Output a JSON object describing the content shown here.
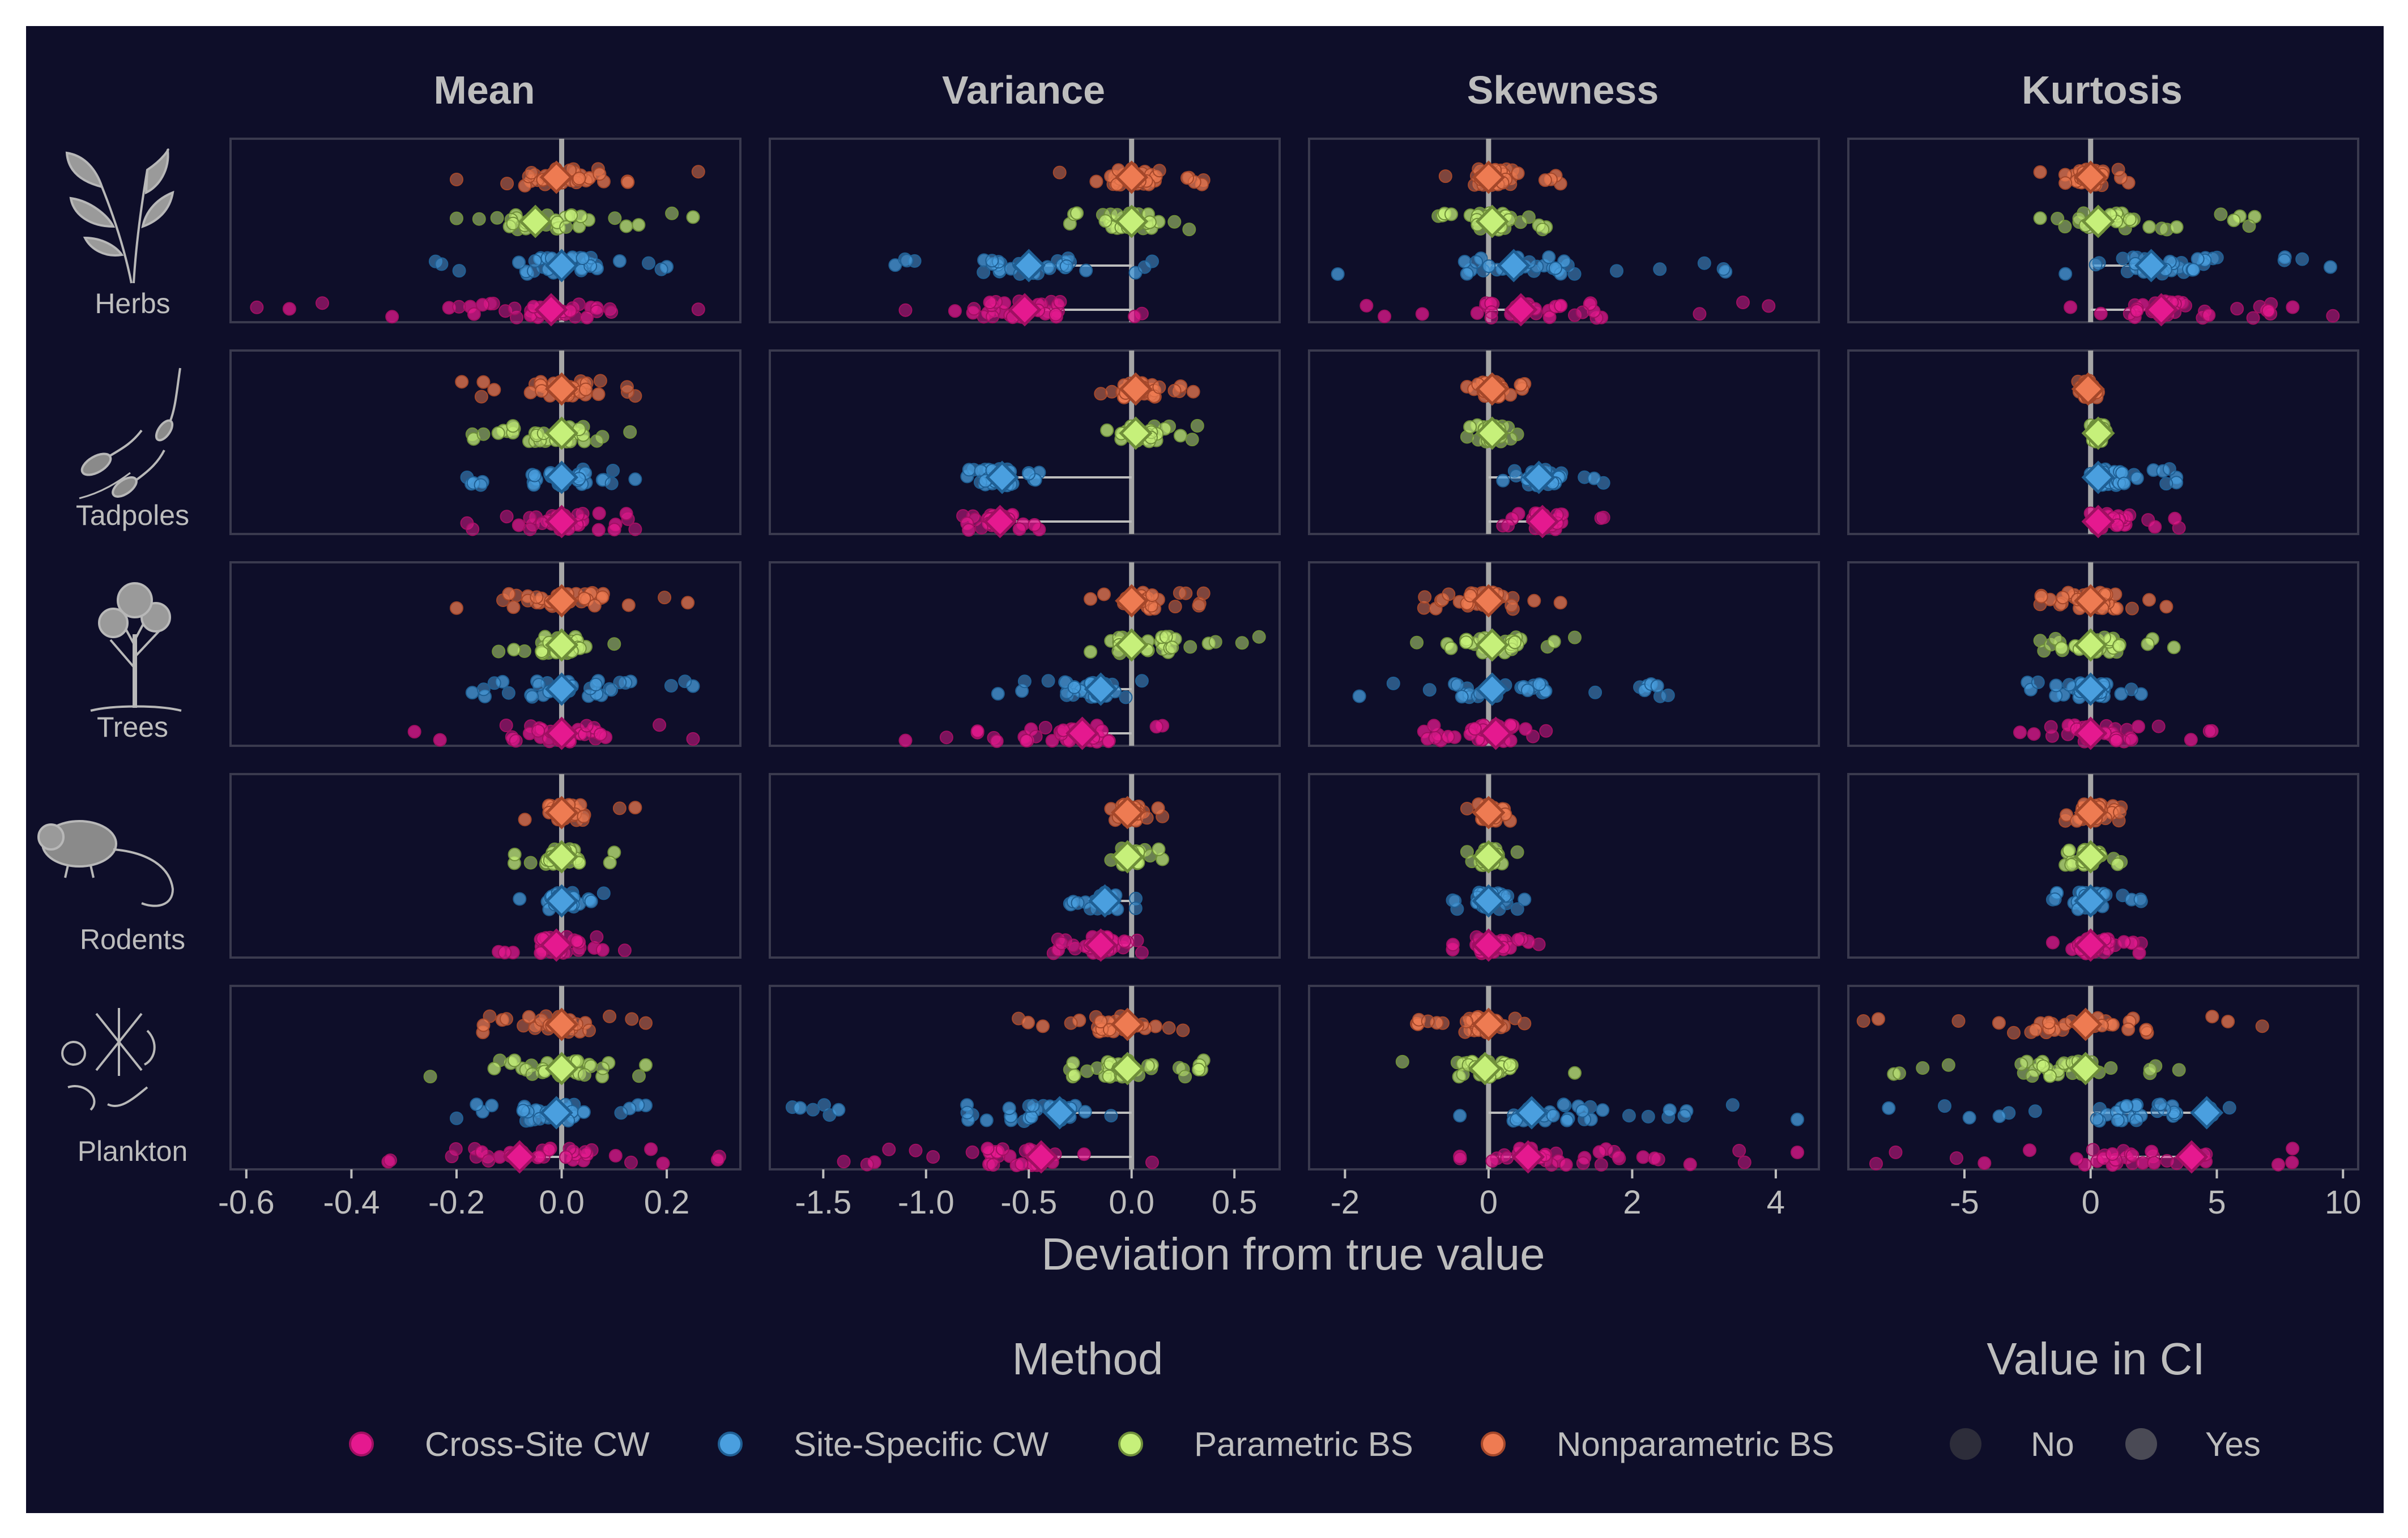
{
  "chart_data": {
    "type": "scatter",
    "xlabel": "Deviation from true value",
    "columns": [
      {
        "title": "Mean",
        "xlim": [
          -0.63,
          0.34
        ],
        "ticks": [
          -0.6,
          -0.4,
          -0.2,
          0.0,
          0.2
        ],
        "tick_labels": [
          "-0.6",
          "-0.4",
          "-0.2",
          "0.0",
          "0.2"
        ]
      },
      {
        "title": "Variance",
        "xlim": [
          -1.76,
          0.72
        ],
        "ticks": [
          -1.5,
          -1.0,
          -0.5,
          0.0,
          0.5
        ],
        "tick_labels": [
          "-1.5",
          "-1.0",
          "-0.5",
          "0.0",
          "0.5"
        ]
      },
      {
        "title": "Skewness",
        "xlim": [
          -2.5,
          4.6
        ],
        "ticks": [
          -2,
          0,
          2,
          4
        ],
        "tick_labels": [
          "-2",
          "0",
          "2",
          "4"
        ]
      },
      {
        "title": "Kurtosis",
        "xlim": [
          -9.6,
          10.6
        ],
        "ticks": [
          -5,
          0,
          5,
          10
        ],
        "tick_labels": [
          "-5",
          "0",
          "5",
          "10"
        ]
      }
    ],
    "rows": [
      "Herbs",
      "Tadpoles",
      "Trees",
      "Rodents",
      "Plankton"
    ],
    "methods": [
      "Cross-Site CW",
      "Site-Specific CW",
      "Parametric BS",
      "Nonparametric BS"
    ],
    "method_colors": {
      "Cross-Site CW": "#e5198f",
      "Site-Specific CW": "#4a9fdf",
      "Parametric BS": "#c6f07a",
      "Nonparametric BS": "#ee7b52"
    },
    "mean_deviation": {
      "Herbs": {
        "Mean": {
          "Nonparametric BS": -0.01,
          "Parametric BS": -0.05,
          "Site-Specific CW": 0.0,
          "Cross-Site CW": -0.02
        },
        "Variance": {
          "Nonparametric BS": 0.0,
          "Parametric BS": 0.0,
          "Site-Specific CW": -0.5,
          "Cross-Site CW": -0.52
        },
        "Skewness": {
          "Nonparametric BS": 0.0,
          "Parametric BS": 0.05,
          "Site-Specific CW": 0.35,
          "Cross-Site CW": 0.45
        },
        "Kurtosis": {
          "Nonparametric BS": 0.0,
          "Parametric BS": 0.3,
          "Site-Specific CW": 2.4,
          "Cross-Site CW": 2.8
        }
      },
      "Tadpoles": {
        "Mean": {
          "Nonparametric BS": 0.0,
          "Parametric BS": 0.0,
          "Site-Specific CW": 0.0,
          "Cross-Site CW": 0.0
        },
        "Variance": {
          "Nonparametric BS": 0.02,
          "Parametric BS": 0.02,
          "Site-Specific CW": -0.63,
          "Cross-Site CW": -0.64
        },
        "Skewness": {
          "Nonparametric BS": 0.05,
          "Parametric BS": 0.05,
          "Site-Specific CW": 0.7,
          "Cross-Site CW": 0.75
        },
        "Kurtosis": {
          "Nonparametric BS": -0.1,
          "Parametric BS": 0.3,
          "Site-Specific CW": 0.3,
          "Cross-Site CW": 0.3
        }
      },
      "Trees": {
        "Mean": {
          "Nonparametric BS": 0.0,
          "Parametric BS": 0.0,
          "Site-Specific CW": 0.0,
          "Cross-Site CW": 0.0
        },
        "Variance": {
          "Nonparametric BS": 0.0,
          "Parametric BS": 0.0,
          "Site-Specific CW": -0.15,
          "Cross-Site CW": -0.24
        },
        "Skewness": {
          "Nonparametric BS": 0.0,
          "Parametric BS": 0.05,
          "Site-Specific CW": 0.05,
          "Cross-Site CW": 0.1
        },
        "Kurtosis": {
          "Nonparametric BS": 0.0,
          "Parametric BS": 0.0,
          "Site-Specific CW": 0.0,
          "Cross-Site CW": 0.0
        }
      },
      "Rodents": {
        "Mean": {
          "Nonparametric BS": 0.0,
          "Parametric BS": 0.0,
          "Site-Specific CW": 0.0,
          "Cross-Site CW": -0.01
        },
        "Variance": {
          "Nonparametric BS": -0.02,
          "Parametric BS": -0.02,
          "Site-Specific CW": -0.13,
          "Cross-Site CW": -0.15
        },
        "Skewness": {
          "Nonparametric BS": 0.0,
          "Parametric BS": 0.0,
          "Site-Specific CW": 0.0,
          "Cross-Site CW": 0.0
        },
        "Kurtosis": {
          "Nonparametric BS": 0.0,
          "Parametric BS": 0.0,
          "Site-Specific CW": 0.0,
          "Cross-Site CW": 0.0
        }
      },
      "Plankton": {
        "Mean": {
          "Nonparametric BS": 0.0,
          "Parametric BS": 0.0,
          "Site-Specific CW": -0.01,
          "Cross-Site CW": -0.08
        },
        "Variance": {
          "Nonparametric BS": -0.02,
          "Parametric BS": -0.02,
          "Site-Specific CW": -0.35,
          "Cross-Site CW": -0.44
        },
        "Skewness": {
          "Nonparametric BS": 0.0,
          "Parametric BS": -0.05,
          "Site-Specific CW": 0.6,
          "Cross-Site CW": 0.55
        },
        "Kurtosis": {
          "Nonparametric BS": -0.2,
          "Parametric BS": -0.2,
          "Site-Specific CW": 4.6,
          "Cross-Site CW": 4.0
        }
      }
    },
    "spread": {
      "Herbs": {
        "Mean": {
          "Nonparametric BS": [
            -0.2,
            0.26
          ],
          "Parametric BS": [
            -0.2,
            0.25
          ],
          "Site-Specific CW": [
            -0.24,
            0.2
          ],
          "Cross-Site CW": [
            -0.58,
            0.26
          ]
        },
        "Variance": {
          "Nonparametric BS": [
            -0.35,
            0.35
          ],
          "Parametric BS": [
            -0.3,
            0.28
          ],
          "Site-Specific CW": [
            -1.15,
            0.1
          ],
          "Cross-Site CW": [
            -1.1,
            0.05
          ]
        },
        "Skewness": {
          "Nonparametric BS": [
            -0.6,
            1.0
          ],
          "Parametric BS": [
            -0.7,
            0.8
          ],
          "Site-Specific CW": [
            -2.1,
            3.3
          ],
          "Cross-Site CW": [
            -1.7,
            3.9
          ]
        },
        "Kurtosis": {
          "Nonparametric BS": [
            -2.0,
            1.5
          ],
          "Parametric BS": [
            -2.0,
            6.5
          ],
          "Site-Specific CW": [
            -1.0,
            9.5
          ],
          "Cross-Site CW": [
            -0.8,
            9.6
          ]
        }
      },
      "Tadpoles": {
        "Mean": {
          "Nonparametric BS": [
            -0.19,
            0.14
          ],
          "Parametric BS": [
            -0.17,
            0.13
          ],
          "Site-Specific CW": [
            -0.18,
            0.14
          ],
          "Cross-Site CW": [
            -0.18,
            0.14
          ]
        },
        "Variance": {
          "Nonparametric BS": [
            -0.15,
            0.3
          ],
          "Parametric BS": [
            -0.12,
            0.32
          ],
          "Site-Specific CW": [
            -0.8,
            -0.45
          ],
          "Cross-Site CW": [
            -0.82,
            -0.45
          ]
        },
        "Skewness": {
          "Nonparametric BS": [
            -0.3,
            0.5
          ],
          "Parametric BS": [
            -0.3,
            0.4
          ],
          "Site-Specific CW": [
            0.2,
            1.6
          ],
          "Cross-Site CW": [
            0.2,
            1.6
          ]
        },
        "Kurtosis": {
          "Nonparametric BS": [
            -0.5,
            0.3
          ],
          "Parametric BS": [
            0.0,
            0.6
          ],
          "Site-Specific CW": [
            0.0,
            3.4
          ],
          "Cross-Site CW": [
            0.0,
            3.5
          ]
        }
      },
      "Trees": {
        "Mean": {
          "Nonparametric BS": [
            -0.2,
            0.24
          ],
          "Parametric BS": [
            -0.12,
            0.1
          ],
          "Site-Specific CW": [
            -0.17,
            0.25
          ],
          "Cross-Site CW": [
            -0.28,
            0.25
          ]
        },
        "Variance": {
          "Nonparametric BS": [
            -0.2,
            0.35
          ],
          "Parametric BS": [
            -0.2,
            0.62
          ],
          "Site-Specific CW": [
            -0.65,
            0.05
          ],
          "Cross-Site CW": [
            -1.1,
            0.15
          ]
        },
        "Skewness": {
          "Nonparametric BS": [
            -0.9,
            1.0
          ],
          "Parametric BS": [
            -1.0,
            1.2
          ],
          "Site-Specific CW": [
            -1.8,
            2.5
          ],
          "Cross-Site CW": [
            -0.9,
            0.8
          ]
        },
        "Kurtosis": {
          "Nonparametric BS": [
            -2.0,
            3.0
          ],
          "Parametric BS": [
            -2.0,
            3.3
          ],
          "Site-Specific CW": [
            -2.5,
            2.0
          ],
          "Cross-Site CW": [
            -2.8,
            4.8
          ]
        }
      },
      "Rodents": {
        "Mean": {
          "Nonparametric BS": [
            -0.07,
            0.14
          ],
          "Parametric BS": [
            -0.09,
            0.1
          ],
          "Site-Specific CW": [
            -0.08,
            0.08
          ],
          "Cross-Site CW": [
            -0.12,
            0.12
          ]
        },
        "Variance": {
          "Nonparametric BS": [
            -0.1,
            0.15
          ],
          "Parametric BS": [
            -0.1,
            0.15
          ],
          "Site-Specific CW": [
            -0.3,
            0.02
          ],
          "Cross-Site CW": [
            -0.38,
            0.05
          ]
        },
        "Skewness": {
          "Nonparametric BS": [
            -0.3,
            0.3
          ],
          "Parametric BS": [
            -0.3,
            0.4
          ],
          "Site-Specific CW": [
            -0.5,
            0.5
          ],
          "Cross-Site CW": [
            -0.5,
            0.7
          ]
        },
        "Kurtosis": {
          "Nonparametric BS": [
            -1.0,
            1.2
          ],
          "Parametric BS": [
            -1.0,
            1.2
          ],
          "Site-Specific CW": [
            -1.5,
            2.0
          ],
          "Cross-Site CW": [
            -1.5,
            2.0
          ]
        }
      },
      "Plankton": {
        "Mean": {
          "Nonparametric BS": [
            -0.15,
            0.16
          ],
          "Parametric BS": [
            -0.25,
            0.16
          ],
          "Site-Specific CW": [
            -0.2,
            0.16
          ],
          "Cross-Site CW": [
            -0.33,
            0.3
          ]
        },
        "Variance": {
          "Nonparametric BS": [
            -0.55,
            0.25
          ],
          "Parametric BS": [
            -0.3,
            0.35
          ],
          "Site-Specific CW": [
            -1.65,
            -0.1
          ],
          "Cross-Site CW": [
            -1.4,
            0.1
          ]
        },
        "Skewness": {
          "Nonparametric BS": [
            -1.0,
            0.5
          ],
          "Parametric BS": [
            -1.2,
            1.2
          ],
          "Site-Specific CW": [
            -0.4,
            4.3
          ],
          "Cross-Site CW": [
            -0.4,
            4.3
          ]
        },
        "Kurtosis": {
          "Nonparametric BS": [
            -9.0,
            6.8
          ],
          "Parametric BS": [
            -7.8,
            3.5
          ],
          "Site-Specific CW": [
            -8.0,
            5.5
          ],
          "Cross-Site CW": [
            -8.5,
            8.0
          ]
        }
      }
    },
    "legend": {
      "method_title": "Method",
      "ci_title": "Value in CI",
      "ci_entries": [
        "No",
        "Yes"
      ],
      "ci_colors": {
        "No": "#2d2d3a",
        "Yes": "#4a4a55"
      },
      "placement": "bottom"
    }
  }
}
